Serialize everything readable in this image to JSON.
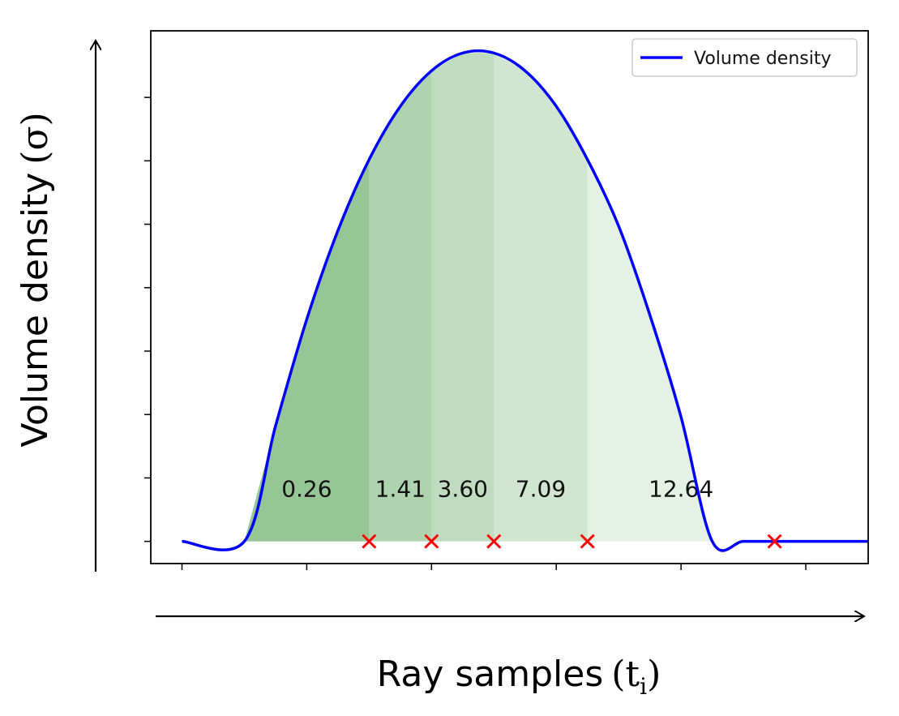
{
  "chart_data": {
    "type": "area",
    "title": "",
    "xlabel": "Ray samples",
    "xlabel_symbol": "t",
    "xlabel_subscript": "i",
    "ylabel": "Volume density",
    "ylabel_symbol": "σ",
    "xlim": [
      -0.05,
      1.1
    ],
    "ylim": [
      -0.05,
      1.15
    ],
    "x_tick_count": 6,
    "y_tick_count": 8,
    "tick_labels_shown": false,
    "grid": false,
    "legend_position": "top-right",
    "series": [
      {
        "name": "Volume density",
        "color": "#0000ff",
        "x": [
          0.0,
          0.1,
          0.15,
          0.2,
          0.25,
          0.3,
          0.35,
          0.4,
          0.45,
          0.5,
          0.55,
          0.6,
          0.65,
          0.7,
          0.75,
          0.8,
          0.85,
          0.9,
          0.95,
          1.0,
          1.05,
          1.1
        ],
        "y": [
          0.0,
          0.0,
          0.26,
          0.5,
          0.7,
          0.86,
          0.98,
          1.06,
          1.1,
          1.1,
          1.06,
          0.98,
          0.86,
          0.71,
          0.51,
          0.28,
          0.0,
          0.0,
          0.0,
          0.0,
          0.0,
          0.0
        ]
      }
    ],
    "sample_points": {
      "x": [
        0.3,
        0.4,
        0.5,
        0.65,
        0.95
      ],
      "color": "#ff0000",
      "marker": "x"
    },
    "shaded_regions": [
      {
        "x_start": 0.1,
        "x_end": 0.3,
        "label": "0.26",
        "color": "#2e8b2e",
        "opacity": 0.5
      },
      {
        "x_start": 0.3,
        "x_end": 0.4,
        "label": "1.41",
        "color": "#2e8b2e",
        "opacity": 0.38
      },
      {
        "x_start": 0.4,
        "x_end": 0.5,
        "label": "3.60",
        "color": "#2e8b2e",
        "opacity": 0.3
      },
      {
        "x_start": 0.5,
        "x_end": 0.65,
        "label": "7.09",
        "color": "#2e8b2e",
        "opacity": 0.22
      },
      {
        "x_start": 0.65,
        "x_end": 0.95,
        "label": "12.64",
        "color": "#2e8b2e",
        "opacity": 0.12
      }
    ]
  }
}
